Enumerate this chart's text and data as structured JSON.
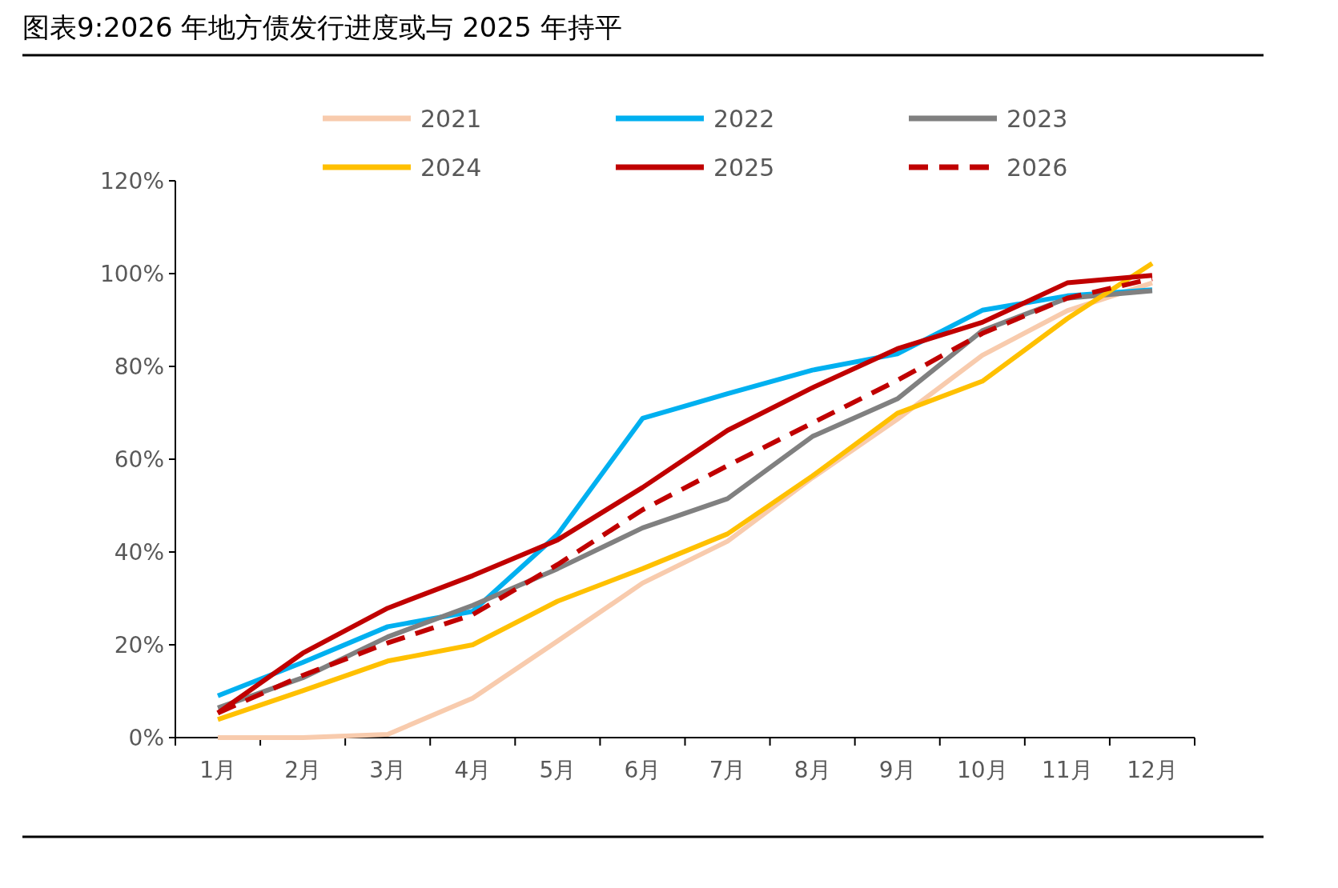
{
  "chart_data": {
    "type": "line",
    "title": "图表9:2026 年地方债发行进度或与 2025 年持平",
    "categories": [
      "1月",
      "2月",
      "3月",
      "4月",
      "5月",
      "6月",
      "7月",
      "8月",
      "9月",
      "10月",
      "11月",
      "12月"
    ],
    "series": [
      {
        "name": "2021",
        "color": "#f8cbad",
        "values": [
          0,
          0,
          0.7,
          8.5,
          20.8,
          33.3,
          42.3,
          56,
          68.6,
          82.4,
          92,
          98
        ]
      },
      {
        "name": "2022",
        "color": "#00b0f0",
        "values": [
          9,
          16.2,
          23.9,
          27.2,
          43.8,
          68.8,
          74.1,
          79.2,
          82.7,
          92.1,
          95.2,
          96.5
        ]
      },
      {
        "name": "2023",
        "color": "#808080",
        "values": [
          6.4,
          12.9,
          21.7,
          28.5,
          36.4,
          45.2,
          51.5,
          64.9,
          73,
          87.7,
          94.7,
          96.3
        ]
      },
      {
        "name": "2024",
        "color": "#ffc000",
        "values": [
          3.9,
          10.1,
          16.5,
          20,
          29.4,
          36.4,
          43.9,
          56.4,
          69.9,
          76.8,
          90.3,
          102.2
        ]
      },
      {
        "name": "2025",
        "color": "#c00000",
        "values": [
          5.3,
          18.2,
          27.9,
          34.9,
          42.6,
          53.9,
          66.2,
          75.4,
          83.8,
          89.5,
          98,
          99.6
        ]
      },
      {
        "name": "2026",
        "color": "#c00000",
        "line_style": "dashed",
        "values": [
          5.3,
          13.4,
          20.4,
          26.5,
          37.3,
          49.1,
          58.6,
          67.8,
          77,
          87.1,
          94.7,
          98.9
        ]
      }
    ],
    "ylim": [
      0,
      120
    ],
    "yticks": [
      {
        "value": 0,
        "label": "0%"
      },
      {
        "value": 20,
        "label": "20%"
      },
      {
        "value": 40,
        "label": "40%"
      },
      {
        "value": 60,
        "label": "60%"
      },
      {
        "value": 80,
        "label": "80%"
      },
      {
        "value": 100,
        "label": "100%"
      },
      {
        "value": 120,
        "label": "120%"
      }
    ],
    "legend": "top",
    "grid": false,
    "marker": "none",
    "line_style": "solid"
  }
}
